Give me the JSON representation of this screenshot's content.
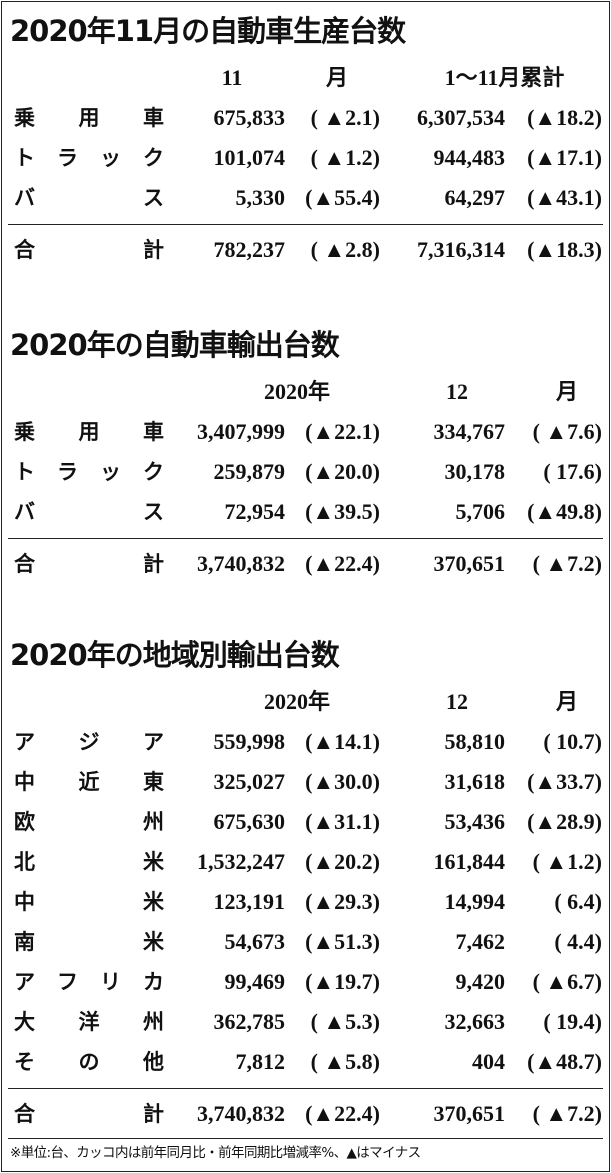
{
  "tables": [
    {
      "title": "2020年11月の自動車生産台数",
      "header": [
        "11",
        "月",
        "1～11月累計"
      ],
      "rows": [
        {
          "label": "乗 用 車",
          "cells": [
            "675,833",
            "( ▲2.1)",
            "6,307,534",
            "(▲18.2)"
          ]
        },
        {
          "label": "ト ラ ッ ク",
          "cells": [
            "101,074",
            "( ▲1.2)",
            "944,483",
            "(▲17.1)"
          ]
        },
        {
          "label": "バ ス",
          "cells": [
            "5,330",
            "(▲55.4)",
            "64,297",
            "(▲43.1)"
          ]
        }
      ],
      "total": {
        "label": "合 計",
        "cells": [
          "782,237",
          "( ▲2.8)",
          "7,316,314",
          "(▲18.3)"
        ]
      }
    },
    {
      "title": "2020年の自動車輸出台数",
      "header": [
        "2020年",
        "12",
        "月"
      ],
      "rows": [
        {
          "label": "乗 用 車",
          "cells": [
            "3,407,999",
            "(▲22.1)",
            "334,767",
            "( ▲7.6)"
          ]
        },
        {
          "label": "ト ラ ッ ク",
          "cells": [
            "259,879",
            "(▲20.0)",
            "30,178",
            "( 17.6)"
          ]
        },
        {
          "label": "バ ス",
          "cells": [
            "72,954",
            "(▲39.5)",
            "5,706",
            "(▲49.8)"
          ]
        }
      ],
      "total": {
        "label": "合 計",
        "cells": [
          "3,740,832",
          "(▲22.4)",
          "370,651",
          "( ▲7.2)"
        ]
      }
    },
    {
      "title": "2020年の地域別輸出台数",
      "header": [
        "2020年",
        "12",
        "月"
      ],
      "rows": [
        {
          "label": "ア ジ ア",
          "cells": [
            "559,998",
            "(▲14.1)",
            "58,810",
            "( 10.7)"
          ]
        },
        {
          "label": "中 近 東",
          "cells": [
            "325,027",
            "(▲30.0)",
            "31,618",
            "(▲33.7)"
          ]
        },
        {
          "label": "欧 州",
          "cells": [
            "675,630",
            "(▲31.1)",
            "53,436",
            "(▲28.9)"
          ]
        },
        {
          "label": "北 米",
          "cells": [
            "1,532,247",
            "(▲20.2)",
            "161,844",
            "( ▲1.2)"
          ]
        },
        {
          "label": "中 米",
          "cells": [
            "123,191",
            "(▲29.3)",
            "14,994",
            "( 6.4)"
          ]
        },
        {
          "label": "南 米",
          "cells": [
            "54,673",
            "(▲51.3)",
            "7,462",
            "( 4.4)"
          ]
        },
        {
          "label": "ア フ リ カ",
          "cells": [
            "99,469",
            "(▲19.7)",
            "9,420",
            "( ▲6.7)"
          ]
        },
        {
          "label": "大 洋 州",
          "cells": [
            "362,785",
            "( ▲5.3)",
            "32,663",
            "( 19.4)"
          ]
        },
        {
          "label": "そ の 他",
          "cells": [
            "7,812",
            "( ▲5.8)",
            "404",
            "(▲48.7)"
          ]
        }
      ],
      "total": {
        "label": "合 計",
        "cells": [
          "3,740,832",
          "(▲22.4)",
          "370,651",
          "( ▲7.2)"
        ]
      }
    }
  ],
  "footnote": "※単位:台、カッコ内は前年同月比・前年同期比増減率%、▲はマイナス"
}
